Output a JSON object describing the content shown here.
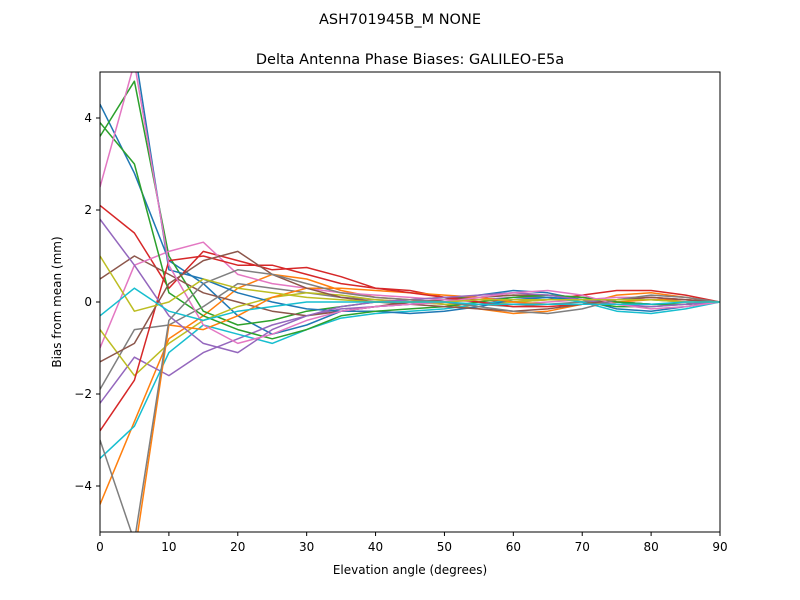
{
  "figure": {
    "suptitle": "ASH701945B_M    NONE"
  },
  "chart_data": {
    "type": "line",
    "title": "Delta Antenna Phase Biases: GALILEO-E5a",
    "xlabel": "Elevation angle (degrees)",
    "ylabel": "Bias from mean (mm)",
    "xlim": [
      0,
      90
    ],
    "ylim": [
      -5,
      5
    ],
    "xticks": [
      0,
      10,
      20,
      30,
      40,
      50,
      60,
      70,
      80,
      90
    ],
    "yticks": [
      -4,
      -2,
      0,
      2,
      4
    ],
    "xtick_labels": [
      "0",
      "10",
      "20",
      "30",
      "40",
      "50",
      "60",
      "70",
      "80",
      "90"
    ],
    "ytick_labels": [
      "−4",
      "−2",
      "0",
      "2",
      "4"
    ],
    "grid": false,
    "legend": "none",
    "colors": [
      "#1f77b4",
      "#ff7f0e",
      "#2ca02c",
      "#d62728",
      "#9467bd",
      "#8c564b",
      "#e377c2",
      "#7f7f7f",
      "#bcbd22",
      "#17becf"
    ],
    "x": [
      0,
      5,
      10,
      15,
      20,
      25,
      30,
      35,
      40,
      45,
      50,
      55,
      60,
      65,
      70,
      75,
      80,
      85,
      90
    ],
    "series": [
      {
        "values": [
          4.3,
          2.8,
          0.9,
          0.4,
          -0.3,
          -0.7,
          -0.5,
          -0.2,
          -0.1,
          -0.05,
          0.05,
          0.15,
          0.25,
          0.2,
          0.05,
          -0.15,
          -0.2,
          -0.1,
          0
        ]
      },
      {
        "values": [
          -4.4,
          -2.6,
          -0.8,
          -0.3,
          0.3,
          0.6,
          0.5,
          0.25,
          0.1,
          0.05,
          -0.05,
          -0.15,
          -0.25,
          -0.2,
          -0.05,
          0.15,
          0.2,
          0.1,
          0
        ]
      },
      {
        "values": [
          3.6,
          4.8,
          1.0,
          -0.2,
          -0.5,
          -0.4,
          -0.2,
          -0.1,
          0.0,
          0.05,
          0.1,
          0.1,
          0.15,
          0.1,
          0.0,
          -0.1,
          -0.1,
          -0.05,
          0
        ]
      },
      {
        "values": [
          2.1,
          1.5,
          0.3,
          1.1,
          0.9,
          0.7,
          0.75,
          0.55,
          0.3,
          0.25,
          0.1,
          0.05,
          0.0,
          0.05,
          0.15,
          0.25,
          0.25,
          0.15,
          0
        ]
      },
      {
        "values": [
          -2.2,
          -1.2,
          -1.6,
          -1.1,
          -0.8,
          -0.5,
          -0.3,
          -0.15,
          -0.1,
          -0.05,
          0.0,
          0.05,
          0.1,
          0.1,
          0.05,
          0.0,
          -0.05,
          -0.05,
          0
        ]
      },
      {
        "values": [
          0.5,
          1.0,
          0.6,
          0.2,
          0.0,
          -0.2,
          -0.3,
          -0.2,
          -0.1,
          0.0,
          0.05,
          0.1,
          0.15,
          0.15,
          0.1,
          0.0,
          -0.05,
          -0.05,
          0
        ]
      },
      {
        "values": [
          -1.0,
          0.8,
          1.1,
          1.3,
          0.6,
          0.4,
          0.3,
          0.2,
          0.15,
          0.1,
          0.05,
          0.0,
          -0.05,
          0.0,
          0.05,
          0.1,
          0.1,
          0.05,
          0
        ]
      },
      {
        "values": [
          -1.9,
          -0.6,
          -0.5,
          -0.1,
          0.4,
          0.3,
          0.2,
          0.1,
          0.05,
          0.0,
          -0.05,
          -0.05,
          -0.1,
          -0.05,
          0.0,
          0.05,
          0.05,
          0.0,
          0
        ]
      },
      {
        "values": [
          -0.6,
          -1.6,
          -0.9,
          -0.4,
          -0.1,
          0.1,
          0.2,
          0.15,
          0.05,
          0.0,
          -0.05,
          -0.05,
          0.0,
          0.05,
          0.05,
          0.0,
          -0.05,
          -0.05,
          0
        ]
      },
      {
        "values": [
          -3.4,
          -2.7,
          -1.1,
          -0.5,
          -0.7,
          -0.9,
          -0.6,
          -0.35,
          -0.25,
          -0.2,
          -0.15,
          -0.05,
          0.05,
          0.1,
          0.0,
          -0.2,
          -0.25,
          -0.15,
          0
        ]
      },
      {
        "values": [
          5.5,
          5.5,
          0.7,
          0.5,
          0.2,
          0.0,
          -0.15,
          -0.2,
          -0.2,
          -0.25,
          -0.2,
          -0.1,
          0.05,
          0.1,
          0.05,
          0.0,
          -0.05,
          -0.05,
          0
        ]
      },
      {
        "values": [
          -5.5,
          -5.5,
          -0.5,
          -0.6,
          -0.3,
          0.1,
          0.3,
          0.3,
          0.25,
          0.2,
          0.15,
          0.1,
          0.0,
          -0.05,
          -0.05,
          0.0,
          0.05,
          0.05,
          0
        ]
      },
      {
        "values": [
          3.9,
          3.0,
          0.2,
          -0.3,
          -0.6,
          -0.8,
          -0.6,
          -0.3,
          -0.2,
          -0.15,
          -0.1,
          0.0,
          0.1,
          0.15,
          0.1,
          0.0,
          -0.05,
          -0.05,
          0
        ]
      },
      {
        "values": [
          -2.8,
          -1.7,
          0.9,
          1.0,
          0.8,
          0.8,
          0.6,
          0.4,
          0.3,
          0.2,
          0.1,
          0.0,
          -0.1,
          -0.1,
          -0.05,
          0.05,
          0.1,
          0.05,
          0
        ]
      },
      {
        "values": [
          1.8,
          0.8,
          -0.3,
          -0.9,
          -1.1,
          -0.6,
          -0.3,
          -0.1,
          0.0,
          0.05,
          0.1,
          0.15,
          0.2,
          0.15,
          0.05,
          -0.05,
          -0.1,
          -0.05,
          0
        ]
      },
      {
        "values": [
          -1.3,
          -0.9,
          0.4,
          0.9,
          1.1,
          0.6,
          0.3,
          0.1,
          0.0,
          -0.05,
          -0.1,
          -0.15,
          -0.2,
          -0.15,
          -0.05,
          0.05,
          0.1,
          0.05,
          0
        ]
      },
      {
        "values": [
          2.5,
          5.2,
          0.8,
          -0.5,
          -0.9,
          -0.7,
          -0.4,
          -0.2,
          -0.1,
          -0.05,
          0.0,
          0.1,
          0.2,
          0.25,
          0.15,
          -0.05,
          -0.15,
          -0.1,
          0
        ]
      },
      {
        "values": [
          -3.0,
          -5.2,
          -0.4,
          0.4,
          0.7,
          0.6,
          0.4,
          0.2,
          0.1,
          0.05,
          0.0,
          -0.1,
          -0.2,
          -0.25,
          -0.15,
          0.05,
          0.15,
          0.1,
          0
        ]
      },
      {
        "values": [
          1.0,
          -0.2,
          0.0,
          0.5,
          0.3,
          0.2,
          0.1,
          0.05,
          0.0,
          0.0,
          0.0,
          0.05,
          0.05,
          0.05,
          0.05,
          0.05,
          0.05,
          0.0,
          0
        ]
      },
      {
        "values": [
          -0.3,
          0.3,
          -0.2,
          -0.4,
          -0.2,
          -0.1,
          0.0,
          0.0,
          0.0,
          0.0,
          0.0,
          -0.05,
          -0.05,
          -0.05,
          -0.05,
          -0.05,
          -0.05,
          0.0,
          0
        ]
      }
    ]
  }
}
